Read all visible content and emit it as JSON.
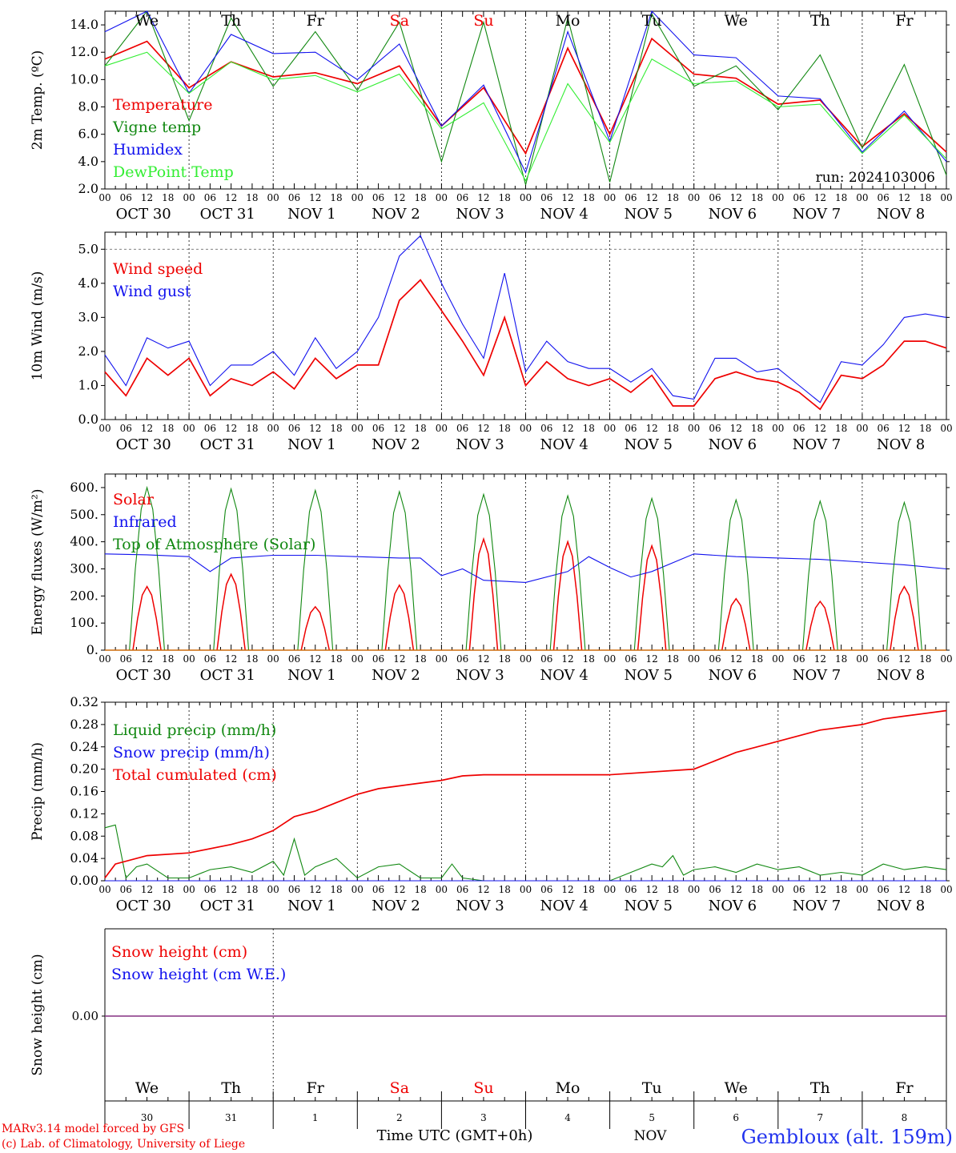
{
  "run_label": "run: 2024103006",
  "days": [
    {
      "dow": "We",
      "date": "OCT 30",
      "num": "30",
      "weekend": false
    },
    {
      "dow": "Th",
      "date": "OCT 31",
      "num": "31",
      "weekend": false
    },
    {
      "dow": "Fr",
      "date": "NOV  1",
      "num": "1",
      "weekend": false
    },
    {
      "dow": "Sa",
      "date": "NOV  2",
      "num": "2",
      "weekend": true
    },
    {
      "dow": "Su",
      "date": "NOV  3",
      "num": "3",
      "weekend": true
    },
    {
      "dow": "Mo",
      "date": "NOV  4",
      "num": "4",
      "weekend": false
    },
    {
      "dow": "Tu",
      "date": "NOV  5",
      "num": "5",
      "weekend": false
    },
    {
      "dow": "We",
      "date": "NOV  6",
      "num": "6",
      "weekend": false
    },
    {
      "dow": "Th",
      "date": "NOV  7",
      "num": "7",
      "weekend": false
    },
    {
      "dow": "Fr",
      "date": "NOV  8",
      "num": "8",
      "weekend": false
    }
  ],
  "hour_ticks": [
    "00",
    "06",
    "12",
    "18"
  ],
  "footer": {
    "model": "MARv3.14 model forced by GFS",
    "lab": "(c) Lab. of Climatology, University of Liege",
    "time_label": "Time UTC (GMT+0h)",
    "month": "NOV",
    "station": "Gembloux (alt. 159m)"
  },
  "colors": {
    "red": "#ee0000",
    "green": "#118811",
    "blue": "#1111ee",
    "lightgreen": "#33ee33",
    "purple": "#7a3f9a",
    "weekend": "#ee0000"
  },
  "chart_data": [
    {
      "id": "temperature",
      "type": "line",
      "ylabel": "2m Temp. (ºC)",
      "ylim": [
        2.0,
        15.0
      ],
      "yticks": [
        "2.0",
        "4.0",
        "6.0",
        "8.0",
        "10.0",
        "12.0",
        "14.0"
      ],
      "yvals": [
        2,
        4,
        6,
        8,
        10,
        12,
        14
      ],
      "x_unit": "hours since OCT 30 00 UTC",
      "series": [
        {
          "name": "Temperature",
          "color": "red",
          "x": [
            0,
            12,
            24,
            36,
            48,
            60,
            72,
            84,
            96,
            108,
            120,
            132,
            144,
            156,
            168,
            180,
            192,
            204,
            216,
            228,
            240
          ],
          "y": [
            11.5,
            12.8,
            9.4,
            11.3,
            10.2,
            10.5,
            9.7,
            11.0,
            6.6,
            9.4,
            4.6,
            12.3,
            6.0,
            13.0,
            10.4,
            10.1,
            8.2,
            8.5,
            5.1,
            7.5,
            4.7
          ]
        },
        {
          "name": "Vigne temp",
          "color": "green",
          "x": [
            0,
            12,
            24,
            36,
            48,
            60,
            72,
            84,
            96,
            108,
            120,
            132,
            144,
            156,
            168,
            180,
            192,
            204,
            216,
            228,
            240
          ],
          "y": [
            11.0,
            15.0,
            7.0,
            14.5,
            9.5,
            13.5,
            9.2,
            14.2,
            4.0,
            14.2,
            2.3,
            14.5,
            2.5,
            14.8,
            9.5,
            11.0,
            7.8,
            11.8,
            5.0,
            11.1,
            3.0
          ]
        },
        {
          "name": "Humidex",
          "color": "blue",
          "x": [
            0,
            12,
            24,
            36,
            48,
            60,
            72,
            84,
            96,
            108,
            120,
            132,
            144,
            156,
            168,
            180,
            192,
            204,
            216,
            228,
            240
          ],
          "y": [
            13.5,
            15.0,
            9.0,
            13.3,
            11.9,
            12.0,
            10.0,
            12.6,
            6.6,
            9.6,
            3.2,
            13.5,
            5.5,
            15.0,
            11.8,
            11.6,
            8.8,
            8.6,
            4.7,
            7.7,
            4.0
          ]
        },
        {
          "name": "DewPoint Temp",
          "color": "lightgreen",
          "x": [
            0,
            12,
            24,
            36,
            48,
            60,
            72,
            84,
            96,
            108,
            120,
            132,
            144,
            156,
            168,
            180,
            192,
            204,
            216,
            228,
            240
          ],
          "y": [
            11.0,
            12.0,
            9.0,
            11.3,
            10.0,
            10.3,
            9.1,
            10.4,
            6.4,
            8.3,
            2.6,
            9.7,
            5.4,
            11.5,
            9.7,
            9.9,
            8.0,
            8.2,
            4.6,
            7.4,
            4.2
          ]
        }
      ]
    },
    {
      "id": "wind",
      "type": "line",
      "ylabel": "10m Wind (m/s)",
      "ylim": [
        0.0,
        5.5
      ],
      "yticks": [
        "0.0",
        "1.0",
        "2.0",
        "3.0",
        "4.0",
        "5.0"
      ],
      "yvals": [
        0,
        1,
        2,
        3,
        4,
        5
      ],
      "hline": 5.0,
      "series": [
        {
          "name": "Wind speed",
          "color": "red",
          "x": [
            0,
            6,
            12,
            18,
            24,
            30,
            36,
            42,
            48,
            54,
            60,
            66,
            72,
            78,
            84,
            90,
            96,
            102,
            108,
            114,
            120,
            126,
            132,
            138,
            144,
            150,
            156,
            162,
            168,
            174,
            180,
            186,
            192,
            198,
            204,
            210,
            216,
            222,
            228,
            234,
            240
          ],
          "y": [
            1.4,
            0.7,
            1.8,
            1.3,
            1.8,
            0.7,
            1.2,
            1.0,
            1.4,
            0.9,
            1.8,
            1.2,
            1.6,
            1.6,
            3.5,
            4.1,
            3.2,
            2.3,
            1.3,
            3.0,
            1.0,
            1.7,
            1.2,
            1.0,
            1.2,
            0.8,
            1.3,
            0.4,
            0.4,
            1.2,
            1.4,
            1.2,
            1.1,
            0.8,
            0.3,
            1.3,
            1.2,
            1.6,
            2.3,
            2.3,
            2.1
          ]
        },
        {
          "name": "Wind gust",
          "color": "blue",
          "x": [
            0,
            6,
            12,
            18,
            24,
            30,
            36,
            42,
            48,
            54,
            60,
            66,
            72,
            78,
            84,
            90,
            96,
            102,
            108,
            114,
            120,
            126,
            132,
            138,
            144,
            150,
            156,
            162,
            168,
            174,
            180,
            186,
            192,
            198,
            204,
            210,
            216,
            222,
            228,
            234,
            240
          ],
          "y": [
            1.9,
            1.0,
            2.4,
            2.1,
            2.3,
            1.0,
            1.6,
            1.6,
            2.0,
            1.3,
            2.4,
            1.5,
            2.0,
            3.0,
            4.8,
            5.4,
            4.0,
            2.8,
            1.8,
            4.3,
            1.4,
            2.3,
            1.7,
            1.5,
            1.5,
            1.1,
            1.5,
            0.7,
            0.6,
            1.8,
            1.8,
            1.4,
            1.5,
            1.0,
            0.5,
            1.7,
            1.6,
            2.2,
            3.0,
            3.1,
            3.0
          ]
        }
      ]
    },
    {
      "id": "energy",
      "type": "line",
      "ylabel": "Energy fluxes (W/m²)",
      "ylim": [
        0,
        650
      ],
      "yticks": [
        "0.",
        "100.",
        "200.",
        "300.",
        "400.",
        "500.",
        "600."
      ],
      "yvals": [
        0,
        100,
        200,
        300,
        400,
        500,
        600
      ],
      "series": [
        {
          "name": "Solar",
          "color": "red",
          "kind": "diurnal",
          "peaks": [
            235,
            280,
            160,
            240,
            410,
            400,
            385,
            190,
            180,
            235
          ]
        },
        {
          "name": "Infrared",
          "color": "blue",
          "x": [
            0,
            12,
            24,
            30,
            36,
            48,
            60,
            72,
            84,
            90,
            96,
            102,
            108,
            120,
            132,
            138,
            144,
            150,
            156,
            168,
            180,
            192,
            204,
            216,
            228,
            240
          ],
          "y": [
            355,
            352,
            345,
            290,
            340,
            350,
            350,
            345,
            340,
            340,
            275,
            300,
            258,
            250,
            290,
            345,
            305,
            270,
            290,
            355,
            345,
            340,
            335,
            325,
            315,
            300
          ]
        },
        {
          "name": "Top of Atmosphere (Solar)",
          "color": "green",
          "kind": "diurnal",
          "peaks": [
            600,
            595,
            590,
            585,
            575,
            570,
            560,
            555,
            550,
            545
          ]
        }
      ]
    },
    {
      "id": "precip",
      "type": "line",
      "ylabel": "Precip (mm/h)",
      "ylim": [
        0,
        0.32
      ],
      "yticks": [
        "0.00",
        "0.04",
        "0.08",
        "0.12",
        "0.16",
        "0.20",
        "0.24",
        "0.28",
        "0.32"
      ],
      "yvals": [
        0,
        0.04,
        0.08,
        0.12,
        0.16,
        0.2,
        0.24,
        0.28,
        0.32
      ],
      "series": [
        {
          "name": "Liquid precip (mm/h)",
          "color": "green",
          "x": [
            0,
            3,
            6,
            9,
            12,
            18,
            24,
            30,
            36,
            42,
            48,
            51,
            54,
            57,
            60,
            66,
            72,
            78,
            84,
            90,
            96,
            99,
            102,
            108,
            120,
            132,
            144,
            156,
            159,
            162,
            165,
            168,
            174,
            180,
            186,
            192,
            198,
            204,
            210,
            216,
            222,
            228,
            234,
            240
          ],
          "y": [
            0.095,
            0.1,
            0.005,
            0.025,
            0.03,
            0.005,
            0.005,
            0.02,
            0.025,
            0.015,
            0.035,
            0.01,
            0.075,
            0.01,
            0.025,
            0.04,
            0.005,
            0.025,
            0.03,
            0.005,
            0.005,
            0.03,
            0.005,
            0.0,
            0.0,
            0.0,
            0.0,
            0.03,
            0.025,
            0.045,
            0.01,
            0.02,
            0.025,
            0.015,
            0.03,
            0.02,
            0.025,
            0.01,
            0.015,
            0.01,
            0.03,
            0.02,
            0.025,
            0.02
          ]
        },
        {
          "name": "Snow precip (mm/h)",
          "color": "blue",
          "x": [
            0,
            240
          ],
          "y": [
            0.0,
            0.0
          ]
        },
        {
          "name": "Total cumulated (cm)",
          "color": "red",
          "x": [
            0,
            3,
            12,
            24,
            36,
            42,
            48,
            54,
            60,
            66,
            72,
            78,
            84,
            90,
            96,
            102,
            108,
            120,
            132,
            144,
            168,
            174,
            180,
            186,
            192,
            198,
            204,
            216,
            222,
            228,
            240
          ],
          "y": [
            0.005,
            0.03,
            0.045,
            0.05,
            0.065,
            0.075,
            0.09,
            0.115,
            0.125,
            0.14,
            0.155,
            0.165,
            0.17,
            0.175,
            0.18,
            0.188,
            0.19,
            0.19,
            0.19,
            0.19,
            0.2,
            0.215,
            0.23,
            0.24,
            0.25,
            0.26,
            0.27,
            0.28,
            0.29,
            0.295,
            0.305
          ]
        }
      ]
    },
    {
      "id": "snow",
      "type": "line",
      "ylabel": "Snow height (cm)",
      "yticks": [
        "0.00"
      ],
      "series": [
        {
          "name": "Snow height (cm)",
          "color": "red",
          "x": [
            0,
            240
          ],
          "y": [
            0,
            0
          ]
        },
        {
          "name": "Snow height (cm W.E.)",
          "color": "blue",
          "x": [
            0,
            240
          ],
          "y": [
            0,
            0
          ]
        }
      ]
    }
  ]
}
